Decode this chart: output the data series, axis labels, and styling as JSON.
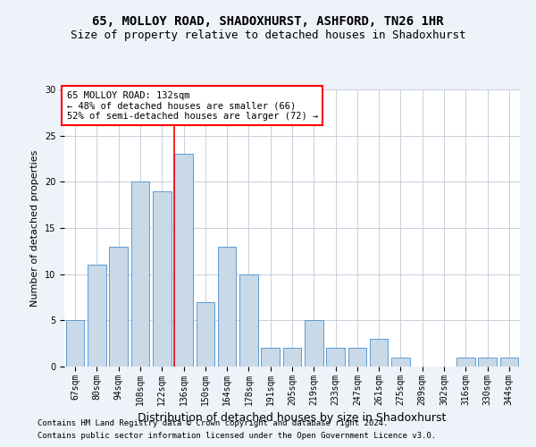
{
  "title1": "65, MOLLOY ROAD, SHADOXHURST, ASHFORD, TN26 1HR",
  "title2": "Size of property relative to detached houses in Shadoxhurst",
  "xlabel": "Distribution of detached houses by size in Shadoxhurst",
  "ylabel": "Number of detached properties",
  "categories": [
    "67sqm",
    "80sqm",
    "94sqm",
    "108sqm",
    "122sqm",
    "136sqm",
    "150sqm",
    "164sqm",
    "178sqm",
    "191sqm",
    "205sqm",
    "219sqm",
    "233sqm",
    "247sqm",
    "261sqm",
    "275sqm",
    "289sqm",
    "302sqm",
    "316sqm",
    "330sqm",
    "344sqm"
  ],
  "values": [
    5,
    11,
    13,
    20,
    19,
    23,
    7,
    13,
    10,
    2,
    2,
    5,
    2,
    2,
    3,
    1,
    0,
    0,
    1,
    1,
    1
  ],
  "bar_color": "#c9d9e8",
  "bar_edge_color": "#5b9bd5",
  "red_line_index": 5,
  "annotation_lines": [
    "65 MOLLOY ROAD: 132sqm",
    "← 48% of detached houses are smaller (66)",
    "52% of semi-detached houses are larger (72) →"
  ],
  "annotation_box_color": "white",
  "annotation_box_edge_color": "red",
  "red_line_color": "red",
  "ylim": [
    0,
    30
  ],
  "yticks": [
    0,
    5,
    10,
    15,
    20,
    25,
    30
  ],
  "footer1": "Contains HM Land Registry data © Crown copyright and database right 2024.",
  "footer2": "Contains public sector information licensed under the Open Government Licence v3.0.",
  "bg_color": "#eef2f9",
  "plot_bg_color": "white",
  "grid_color": "#c8d0dc",
  "title_fontsize": 10,
  "subtitle_fontsize": 9,
  "tick_fontsize": 7,
  "ylabel_fontsize": 8,
  "xlabel_fontsize": 9,
  "footer_fontsize": 6.5,
  "annotation_fontsize": 7.5
}
